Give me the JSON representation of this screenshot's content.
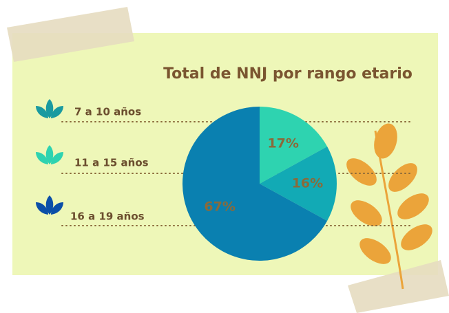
{
  "chart_data": {
    "type": "pie",
    "title": "Total de NNJ por rango etario",
    "categories": [
      "7 a 10 años",
      "11 a 15 años",
      "16 a 19 años"
    ],
    "values": [
      17,
      16,
      67
    ],
    "value_labels": [
      "17%",
      "16%",
      "67%"
    ],
    "colors": [
      "#2ed3b0",
      "#12aab5",
      "#0a80b0"
    ],
    "legend_colors": [
      "#1a9aa0",
      "#2ed3b0",
      "#0b4fa8"
    ]
  }
}
